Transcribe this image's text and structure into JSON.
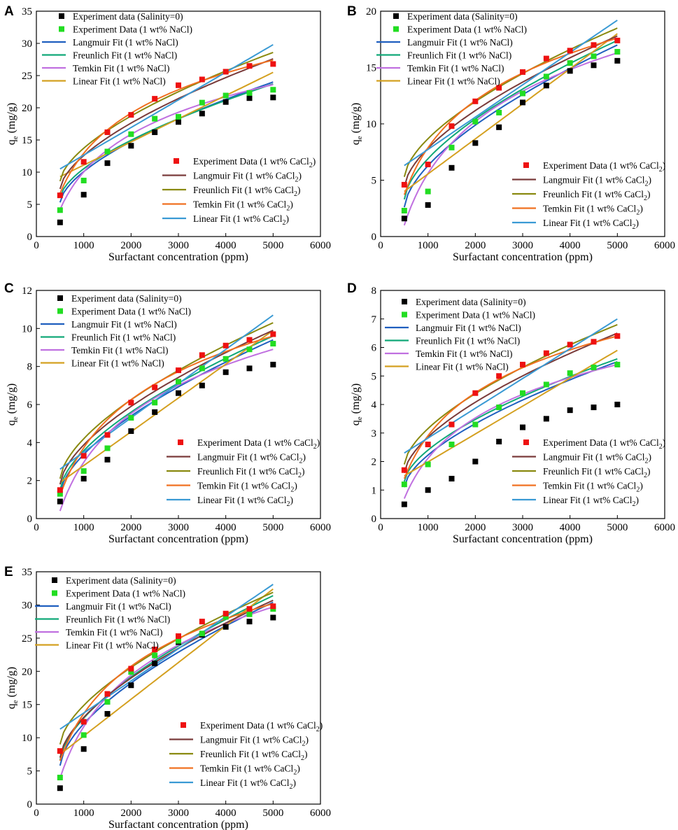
{
  "figure": {
    "xlabel": "Surfactant concentration (ppm)",
    "ylabel_main": "q",
    "ylabel_sub": "e",
    "ylabel_unit": " (mg/g)",
    "legend_top": [
      "Experiment data (Salinity=0)",
      "Experiment Data (1 wt% NaCl)",
      "Langmuir Fit (1 wt% NaCl)",
      "Freunlich Fit (1 wt% NaCl)",
      "Temkin Fit (1 wt% NaCl)",
      "Linear Fit (1 wt% NaCl)"
    ],
    "legend_bottom": [
      {
        "pre": "Experiment Data (1 wt% CaCl",
        "sub": "2",
        "post": ")"
      },
      {
        "pre": "Langmuir Fit (1 wt% CaCl",
        "sub": "2",
        "post": ")"
      },
      {
        "pre": "Freunlich Fit (1 wt% CaCl",
        "sub": "2",
        "post": ")"
      },
      {
        "pre": "Temkin Fit (1 wt% CaCl",
        "sub": "2",
        "post": ")"
      },
      {
        "pre": "Linear Fit (1 wt% CaCl",
        "sub": "2",
        "post": ")"
      }
    ],
    "colors": {
      "exp_salinity0": "#000000",
      "exp_nacl": "#22dd22",
      "langmuir_nacl": "#1f5fbf",
      "freundlich_nacl": "#10a878",
      "temkin_nacl": "#c070e0",
      "linear_nacl": "#d4a020",
      "exp_cacl2": "#ee1111",
      "langmuir_cacl2": "#7a3b3b",
      "freundlich_cacl2": "#8a8a10",
      "temkin_cacl2": "#f07020",
      "linear_cacl2": "#3a9ad4"
    }
  },
  "chart_data": [
    {
      "panel": "A",
      "type": "scatter",
      "xlim": [
        0,
        6000
      ],
      "ylim": [
        0,
        35
      ],
      "xticks": [
        0,
        1000,
        2000,
        3000,
        4000,
        5000,
        6000
      ],
      "yticks": [
        0,
        5,
        10,
        15,
        20,
        25,
        30,
        35
      ],
      "x": [
        500,
        1000,
        1500,
        2000,
        2500,
        3000,
        3500,
        4000,
        4500,
        5000
      ],
      "series": [
        {
          "name": "Experiment data (Salinity=0)",
          "values": [
            2.2,
            6.5,
            11.4,
            14.1,
            16.2,
            17.8,
            19.1,
            20.9,
            21.5,
            21.6
          ]
        },
        {
          "name": "Experiment Data (1 wt% NaCl)",
          "values": [
            4.1,
            8.7,
            13.2,
            15.9,
            18.3,
            18.6,
            20.8,
            21.9,
            22.3,
            22.8
          ]
        },
        {
          "name": "Experiment Data (1 wt% CaCl2)",
          "values": [
            6.4,
            11.6,
            16.2,
            18.9,
            21.4,
            23.5,
            24.4,
            25.6,
            26.5,
            26.8
          ]
        }
      ],
      "fits": [
        {
          "name": "Langmuir Fit (1 wt% NaCl)",
          "y0": 5.3,
          "y1": 24.0,
          "shape": "curve"
        },
        {
          "name": "Freunlich Fit (1 wt% NaCl)",
          "y0": 6.0,
          "y1": 23.7,
          "shape": "curve"
        },
        {
          "name": "Temkin Fit (1 wt% NaCl)",
          "y0": 4.2,
          "y1": 23.6,
          "shape": "log"
        },
        {
          "name": "Linear Fit (1 wt% NaCl)",
          "y0": 9.3,
          "y1": 25.5,
          "shape": "linear"
        },
        {
          "name": "Langmuir Fit (1 wt% CaCl2)",
          "y0": 7.4,
          "y1": 27.6,
          "shape": "curve"
        },
        {
          "name": "Freunlich Fit (1 wt% CaCl2)",
          "y0": 8.6,
          "y1": 28.6,
          "shape": "curve"
        },
        {
          "name": "Temkin Fit (1 wt% CaCl2)",
          "y0": 6.7,
          "y1": 27.4,
          "shape": "log"
        },
        {
          "name": "Linear Fit (1 wt% CaCl2)",
          "y0": 10.5,
          "y1": 29.8,
          "shape": "linear"
        }
      ]
    },
    {
      "panel": "B",
      "type": "scatter",
      "xlim": [
        0,
        6000
      ],
      "ylim": [
        0,
        20
      ],
      "xticks": [
        0,
        1000,
        2000,
        3000,
        4000,
        5000,
        6000
      ],
      "yticks": [
        0,
        5,
        10,
        15,
        20
      ],
      "x": [
        500,
        1000,
        1500,
        2000,
        2500,
        3000,
        3500,
        4000,
        4500,
        5000
      ],
      "series": [
        {
          "name": "Experiment data (Salinity=0)",
          "values": [
            1.6,
            2.8,
            6.1,
            8.3,
            9.7,
            11.9,
            13.4,
            14.7,
            15.2,
            15.6
          ]
        },
        {
          "name": "Experiment Data (1 wt% NaCl)",
          "values": [
            2.3,
            4.0,
            7.9,
            10.2,
            11.0,
            12.7,
            14.2,
            15.4,
            16.0,
            16.4
          ]
        },
        {
          "name": "Experiment Data (1 wt% CaCl2)",
          "values": [
            4.6,
            6.4,
            9.8,
            12.0,
            13.2,
            14.6,
            15.8,
            16.5,
            17.0,
            17.4
          ]
        }
      ],
      "fits": [
        {
          "name": "Langmuir Fit (1 wt% NaCl)",
          "y0": 2.6,
          "y1": 17.0,
          "shape": "curve"
        },
        {
          "name": "Freunlich Fit (1 wt% NaCl)",
          "y0": 3.3,
          "y1": 17.4,
          "shape": "curve"
        },
        {
          "name": "Temkin Fit (1 wt% NaCl)",
          "y0": 1.0,
          "y1": 16.3,
          "shape": "log"
        },
        {
          "name": "Linear Fit (1 wt% NaCl)",
          "y0": 4.0,
          "y1": 18.0,
          "shape": "linear"
        },
        {
          "name": "Langmuir Fit (1 wt% CaCl2)",
          "y0": 4.4,
          "y1": 17.8,
          "shape": "curve"
        },
        {
          "name": "Freunlich Fit (1 wt% CaCl2)",
          "y0": 5.3,
          "y1": 18.5,
          "shape": "curve"
        },
        {
          "name": "Temkin Fit (1 wt% CaCl2)",
          "y0": 3.7,
          "y1": 17.6,
          "shape": "log"
        },
        {
          "name": "Linear Fit (1 wt% CaCl2)",
          "y0": 6.3,
          "y1": 19.2,
          "shape": "linear"
        }
      ]
    },
    {
      "panel": "C",
      "type": "scatter",
      "xlim": [
        0,
        6000
      ],
      "ylim": [
        0,
        12
      ],
      "xticks": [
        0,
        1000,
        2000,
        3000,
        4000,
        5000,
        6000
      ],
      "yticks": [
        0,
        2,
        4,
        6,
        8,
        10,
        12
      ],
      "x": [
        500,
        1000,
        1500,
        2000,
        2500,
        3000,
        3500,
        4000,
        4500,
        5000
      ],
      "series": [
        {
          "name": "Experiment data (Salinity=0)",
          "values": [
            0.9,
            2.1,
            3.1,
            4.6,
            5.6,
            6.6,
            7.0,
            7.7,
            7.9,
            8.1
          ]
        },
        {
          "name": "Experiment Data (1 wt% NaCl)",
          "values": [
            1.3,
            2.5,
            3.7,
            5.3,
            6.1,
            7.2,
            7.9,
            8.4,
            8.9,
            9.2
          ]
        },
        {
          "name": "Experiment Data (1 wt% CaCl2)",
          "values": [
            1.5,
            3.3,
            4.4,
            6.1,
            6.9,
            7.8,
            8.6,
            9.1,
            9.4,
            9.7
          ]
        }
      ],
      "fits": [
        {
          "name": "Langmuir Fit (1 wt% NaCl)",
          "y0": 1.3,
          "y1": 9.4,
          "shape": "curve"
        },
        {
          "name": "Freunlich Fit (1 wt% NaCl)",
          "y0": 1.5,
          "y1": 9.6,
          "shape": "curve"
        },
        {
          "name": "Temkin Fit (1 wt% NaCl)",
          "y0": 0.4,
          "y1": 8.9,
          "shape": "log"
        },
        {
          "name": "Linear Fit (1 wt% NaCl)",
          "y0": 1.9,
          "y1": 9.9,
          "shape": "linear"
        },
        {
          "name": "Langmuir Fit (1 wt% CaCl2)",
          "y0": 1.8,
          "y1": 9.9,
          "shape": "curve"
        },
        {
          "name": "Freunlich Fit (1 wt% CaCl2)",
          "y0": 2.1,
          "y1": 10.3,
          "shape": "curve"
        },
        {
          "name": "Temkin Fit (1 wt% CaCl2)",
          "y0": 1.2,
          "y1": 9.6,
          "shape": "log"
        },
        {
          "name": "Linear Fit (1 wt% CaCl2)",
          "y0": 2.6,
          "y1": 10.7,
          "shape": "linear"
        }
      ]
    },
    {
      "panel": "D",
      "type": "scatter",
      "xlim": [
        0,
        6000
      ],
      "ylim": [
        0,
        8
      ],
      "xticks": [
        0,
        1000,
        2000,
        3000,
        4000,
        5000,
        6000
      ],
      "yticks": [
        0,
        1,
        2,
        3,
        4,
        5,
        6,
        7,
        8
      ],
      "x": [
        500,
        1000,
        1500,
        2000,
        2500,
        3000,
        3500,
        4000,
        4500,
        5000
      ],
      "series": [
        {
          "name": "Experiment data (Salinity=0)",
          "values": [
            0.5,
            1.0,
            1.4,
            2.0,
            2.7,
            3.2,
            3.5,
            3.8,
            3.9,
            4.0
          ]
        },
        {
          "name": "Experiment Data (1 wt% NaCl)",
          "values": [
            1.2,
            1.9,
            2.6,
            3.3,
            3.9,
            4.4,
            4.7,
            5.1,
            5.3,
            5.4
          ]
        },
        {
          "name": "Experiment Data (1 wt% CaCl2)",
          "values": [
            1.7,
            2.6,
            3.3,
            4.4,
            5.0,
            5.4,
            5.8,
            6.1,
            6.2,
            6.4
          ]
        }
      ],
      "fits": [
        {
          "name": "Langmuir Fit (1 wt% NaCl)",
          "y0": 1.1,
          "y1": 5.5,
          "shape": "curve"
        },
        {
          "name": "Freunlich Fit (1 wt% NaCl)",
          "y0": 1.3,
          "y1": 5.6,
          "shape": "curve"
        },
        {
          "name": "Temkin Fit (1 wt% NaCl)",
          "y0": 0.7,
          "y1": 5.4,
          "shape": "log"
        },
        {
          "name": "Linear Fit (1 wt% NaCl)",
          "y0": 1.5,
          "y1": 5.9,
          "shape": "linear"
        },
        {
          "name": "Langmuir Fit (1 wt% CaCl2)",
          "y0": 1.6,
          "y1": 6.5,
          "shape": "curve"
        },
        {
          "name": "Freunlich Fit (1 wt% CaCl2)",
          "y0": 1.9,
          "y1": 6.8,
          "shape": "curve"
        },
        {
          "name": "Temkin Fit (1 wt% CaCl2)",
          "y0": 1.4,
          "y1": 6.4,
          "shape": "log"
        },
        {
          "name": "Linear Fit (1 wt% CaCl2)",
          "y0": 2.3,
          "y1": 7.0,
          "shape": "linear"
        }
      ]
    },
    {
      "panel": "E",
      "type": "scatter",
      "xlim": [
        0,
        6000
      ],
      "ylim": [
        0,
        35
      ],
      "xticks": [
        0,
        1000,
        2000,
        3000,
        4000,
        5000,
        6000
      ],
      "yticks": [
        0,
        5,
        10,
        15,
        20,
        25,
        30,
        35
      ],
      "x": [
        500,
        1000,
        1500,
        2000,
        2500,
        3000,
        3500,
        4000,
        4500,
        5000
      ],
      "series": [
        {
          "name": "Experiment data (Salinity=0)",
          "values": [
            2.4,
            8.3,
            13.6,
            17.9,
            21.2,
            24.4,
            25.5,
            26.7,
            27.5,
            28.1
          ]
        },
        {
          "name": "Experiment Data (1 wt% NaCl)",
          "values": [
            4.0,
            10.4,
            15.4,
            19.9,
            22.4,
            24.6,
            25.7,
            28.2,
            28.6,
            29.4
          ]
        },
        {
          "name": "Experiment Data (1 wt% CaCl2)",
          "values": [
            8.0,
            12.4,
            16.6,
            20.4,
            23.3,
            25.3,
            27.5,
            28.7,
            29.4,
            29.8
          ]
        }
      ],
      "fits": [
        {
          "name": "Langmuir Fit (1 wt% NaCl)",
          "y0": 5.8,
          "y1": 30.4,
          "shape": "curve"
        },
        {
          "name": "Freunlich Fit (1 wt% NaCl)",
          "y0": 6.6,
          "y1": 31.4,
          "shape": "curve"
        },
        {
          "name": "Temkin Fit (1 wt% NaCl)",
          "y0": 3.9,
          "y1": 29.7,
          "shape": "log"
        },
        {
          "name": "Linear Fit (1 wt% NaCl)",
          "y0": 7.5,
          "y1": 32.4,
          "shape": "linear"
        },
        {
          "name": "Langmuir Fit (1 wt% CaCl2)",
          "y0": 7.0,
          "y1": 30.7,
          "shape": "curve"
        },
        {
          "name": "Freunlich Fit (1 wt% CaCl2)",
          "y0": 9.0,
          "y1": 31.9,
          "shape": "curve"
        },
        {
          "name": "Temkin Fit (1 wt% CaCl2)",
          "y0": 6.5,
          "y1": 30.2,
          "shape": "log"
        },
        {
          "name": "Linear Fit (1 wt% CaCl2)",
          "y0": 11.3,
          "y1": 33.1,
          "shape": "linear"
        }
      ]
    }
  ]
}
